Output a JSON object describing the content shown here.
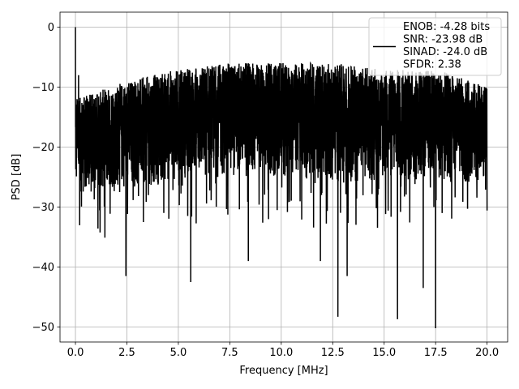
{
  "chart_data": {
    "type": "line",
    "title": "",
    "xlabel": "Frequency [MHz]",
    "ylabel": "PSD [dB]",
    "xlim": [
      -0.75,
      21.0
    ],
    "ylim": [
      -52.5,
      2.5
    ],
    "xticks": [
      0.0,
      2.5,
      5.0,
      7.5,
      10.0,
      12.5,
      15.0,
      17.5,
      20.0
    ],
    "xtick_labels": [
      "0.0",
      "2.5",
      "5.0",
      "7.5",
      "10.0",
      "12.5",
      "15.0",
      "17.5",
      "20.0"
    ],
    "yticks": [
      0,
      -10,
      -20,
      -30,
      -40,
      -50
    ],
    "ytick_labels": [
      "0",
      "−10",
      "−20",
      "−30",
      "−40",
      "−50"
    ],
    "grid": true,
    "legend_position": "upper right",
    "legend": {
      "lines": [
        "ENOB: -4.28 bits",
        "SNR: -23.98 dB",
        "SINAD: -24.0 dB",
        "SFDR: 2.38"
      ]
    },
    "series": [
      {
        "color": "#000000",
        "x_range": [
          0.0,
          20.0
        ],
        "num_points": 4096,
        "noise_floor_upper_db": [
          [
            0.0,
            -12
          ],
          [
            2.5,
            -9
          ],
          [
            5.0,
            -7
          ],
          [
            7.5,
            -6
          ],
          [
            10.0,
            -6
          ],
          [
            12.5,
            -6
          ],
          [
            15.0,
            -7
          ],
          [
            17.5,
            -7
          ],
          [
            20.0,
            -10
          ]
        ],
        "noise_floor_lower_db": [
          [
            0.0,
            -28
          ],
          [
            2.5,
            -27
          ],
          [
            5.0,
            -26
          ],
          [
            7.5,
            -25
          ],
          [
            10.0,
            -25
          ],
          [
            12.5,
            -26
          ],
          [
            15.0,
            -26
          ],
          [
            17.5,
            -26
          ],
          [
            20.0,
            -26
          ]
        ],
        "peaks": [
          {
            "x": 0.0,
            "y": 0.0
          },
          {
            "x": 0.08,
            "y": -12.0
          },
          {
            "x": 0.15,
            "y": -8.0
          },
          {
            "x": 2.45,
            "y": -41.5
          },
          {
            "x": 5.6,
            "y": -42.5
          },
          {
            "x": 8.4,
            "y": -39.0
          },
          {
            "x": 11.9,
            "y": -39.0
          },
          {
            "x": 12.75,
            "y": -48.3
          },
          {
            "x": 13.2,
            "y": -41.5
          },
          {
            "x": 15.65,
            "y": -48.7
          },
          {
            "x": 17.5,
            "y": -50.2
          },
          {
            "x": 16.9,
            "y": -43.5
          }
        ]
      }
    ]
  }
}
